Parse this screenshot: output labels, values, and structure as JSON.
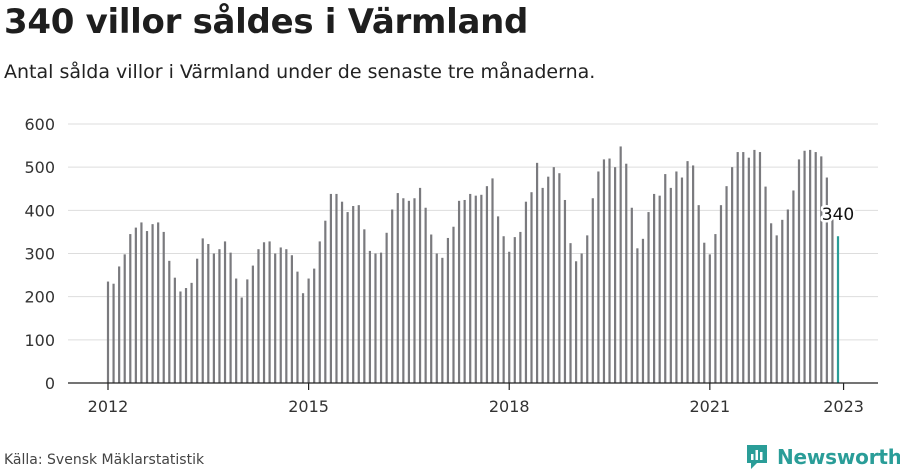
{
  "header": {
    "title": "340 villor såldes i Värmland",
    "subtitle": "Antal sålda villor i Värmland under de senaste tre månaderna."
  },
  "footer": {
    "source": "Källa: Svensk Mäklarstatistik",
    "brand": "Newsworthy"
  },
  "colors": {
    "bar": "#7a7a7e",
    "highlight": "#2a9d98",
    "grid": "#dddddd",
    "axis": "#222222",
    "brand": "#2a9d98"
  },
  "icons": {
    "brand_logo": "newsworthy-logo-icon"
  },
  "chart_data": {
    "type": "bar",
    "x_start": "2012-01",
    "x_ticks": [
      "2012",
      "2015",
      "2018",
      "2021",
      "2023"
    ],
    "ylim": [
      0,
      600
    ],
    "y_ticks": [
      0,
      100,
      200,
      300,
      400,
      500,
      600
    ],
    "grid": true,
    "highlight_last": true,
    "annotation": {
      "text": "340",
      "target": "last"
    },
    "values": [
      235,
      230,
      270,
      298,
      345,
      360,
      372,
      352,
      368,
      372,
      350,
      283,
      244,
      212,
      220,
      232,
      288,
      335,
      322,
      300,
      310,
      328,
      302,
      242,
      198,
      240,
      272,
      310,
      326,
      328,
      300,
      314,
      310,
      296,
      258,
      208,
      242,
      265,
      328,
      376,
      438,
      438,
      420,
      396,
      410,
      412,
      356,
      306,
      300,
      302,
      348,
      402,
      440,
      428,
      422,
      428,
      452,
      406,
      344,
      300,
      290,
      336,
      362,
      422,
      424,
      438,
      434,
      436,
      456,
      474,
      386,
      340,
      304,
      338,
      350,
      420,
      442,
      510,
      452,
      478,
      500,
      486,
      424,
      324,
      282,
      300,
      342,
      428,
      490,
      518,
      520,
      500,
      548,
      508,
      406,
      312,
      334,
      396,
      438,
      434,
      484,
      452,
      490,
      476,
      514,
      504,
      412,
      325,
      298,
      345,
      412,
      456,
      500,
      535,
      535,
      522,
      540,
      535,
      455,
      370,
      342,
      378,
      402,
      446,
      518,
      538,
      540,
      535,
      525,
      476,
      386,
      340
    ]
  }
}
